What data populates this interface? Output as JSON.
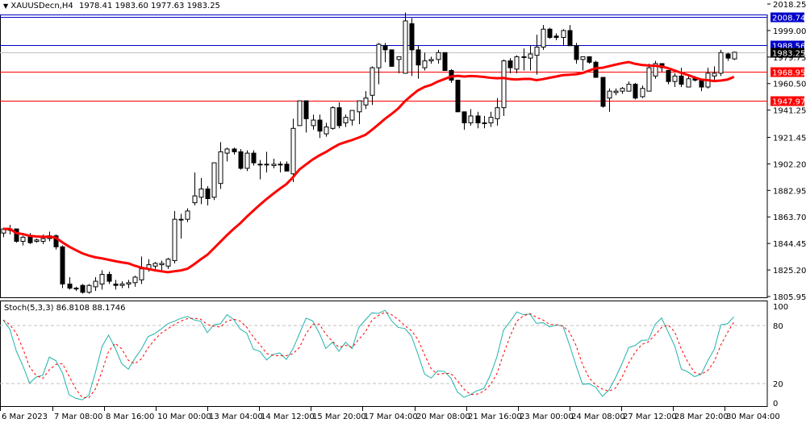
{
  "header": {
    "symbol_label": "XAUUSDecn,H4",
    "ohlc": "1978.41 1983.60 1977.63 1983.25",
    "collapse_icon": "triangle-down-icon"
  },
  "price_axis": {
    "ticks": [
      "2018.25",
      "1999.00",
      "1979.75",
      "1960.50",
      "1941.25",
      "1921.45",
      "1902.20",
      "1882.95",
      "1863.70",
      "1844.45",
      "1825.20",
      "1805.95"
    ],
    "tick_values": [
      2018.25,
      1999.0,
      1979.75,
      1960.5,
      1941.25,
      1921.45,
      1902.2,
      1882.95,
      1863.7,
      1844.45,
      1825.2,
      1805.95
    ]
  },
  "levels": [
    {
      "name": "resistance-2",
      "value": 2008.74,
      "label": "2008.74",
      "color": "#0000c8"
    },
    {
      "name": "resistance-1",
      "value": 1988.56,
      "label": "1988.56",
      "color": "#0000c8"
    },
    {
      "name": "current-price",
      "value": 1983.25,
      "label": "1983.25",
      "color": "#000000",
      "line_color": "#c0c0c0"
    },
    {
      "name": "support-1",
      "value": 1968.95,
      "label": "1968.95",
      "color": "#ff0000"
    },
    {
      "name": "support-2",
      "value": 1947.97,
      "label": "1947.97",
      "color": "#ff0000"
    }
  ],
  "stochastic": {
    "label": "Stoch(5,3,3) 86.8108 88.1746",
    "ticks": [
      "100",
      "80",
      "20",
      "0"
    ],
    "main_color": "#20b2aa",
    "signal_color": "#ff0000"
  },
  "time_axis": {
    "ticks": [
      "6 Mar 2023",
      "7 Mar 08:00",
      "8 Mar 16:00",
      "10 Mar 00:00",
      "13 Mar 04:00",
      "14 Mar 12:00",
      "15 Mar 20:00",
      "17 Mar 04:00",
      "20 Mar 08:00",
      "21 Mar 16:00",
      "23 Mar 00:00",
      "24 Mar 08:00",
      "27 Mar 12:00",
      "28 Mar 20:00",
      "30 Mar 04:00"
    ]
  },
  "chart_data": {
    "type": "candlestick",
    "title": "XAUUSDecn,H4",
    "ma_color": "#ff0000",
    "candles": [
      [
        1852,
        1856,
        1849,
        1855
      ],
      [
        1854,
        1858,
        1851,
        1855
      ],
      [
        1855,
        1854,
        1845,
        1846
      ],
      [
        1846,
        1850,
        1843,
        1849
      ],
      [
        1850,
        1852,
        1844,
        1845
      ],
      [
        1846,
        1848,
        1845,
        1847
      ],
      [
        1846,
        1851,
        1844,
        1848
      ],
      [
        1848,
        1853,
        1846,
        1850
      ],
      [
        1850,
        1851,
        1840,
        1842
      ],
      [
        1842,
        1843,
        1812,
        1815
      ],
      [
        1815,
        1820,
        1811,
        1812
      ],
      [
        1812,
        1813,
        1810,
        1812
      ],
      [
        1814,
        1815,
        1808,
        1809
      ],
      [
        1809,
        1815,
        1808,
        1814
      ],
      [
        1813,
        1820,
        1810,
        1817
      ],
      [
        1815,
        1825,
        1811,
        1822
      ],
      [
        1822,
        1824,
        1815,
        1817
      ],
      [
        1815,
        1818,
        1811,
        1814
      ],
      [
        1814,
        1817,
        1812,
        1815
      ],
      [
        1815,
        1818,
        1812,
        1816
      ],
      [
        1816,
        1821,
        1813,
        1820
      ],
      [
        1818,
        1835,
        1815,
        1826
      ],
      [
        1826,
        1833,
        1824,
        1829
      ],
      [
        1828,
        1831,
        1826,
        1830
      ],
      [
        1829,
        1832,
        1825,
        1830
      ],
      [
        1828,
        1834,
        1826,
        1833
      ],
      [
        1832,
        1868,
        1830,
        1862
      ],
      [
        1862,
        1866,
        1848,
        1862
      ],
      [
        1862,
        1870,
        1860,
        1868
      ],
      [
        1874,
        1896,
        1872,
        1879
      ],
      [
        1878,
        1892,
        1873,
        1884
      ],
      [
        1884,
        1886,
        1872,
        1877
      ],
      [
        1878,
        1895,
        1876,
        1903
      ],
      [
        1888,
        1918,
        1884,
        1911
      ],
      [
        1910,
        1914,
        1904,
        1913
      ],
      [
        1913,
        1914,
        1909,
        1911
      ],
      [
        1911,
        1913,
        1898,
        1899
      ],
      [
        1899,
        1912,
        1897,
        1910
      ],
      [
        1910,
        1912,
        1901,
        1903
      ],
      [
        1902,
        1905,
        1891,
        1902
      ],
      [
        1902,
        1911,
        1896,
        1902
      ],
      [
        1901,
        1906,
        1899,
        1902
      ],
      [
        1902,
        1904,
        1896,
        1902
      ],
      [
        1902,
        1904,
        1897,
        1897
      ],
      [
        1895,
        1935,
        1889,
        1928
      ],
      [
        1930,
        1945,
        1930,
        1948
      ],
      [
        1948,
        1940,
        1925,
        1935
      ],
      [
        1930,
        1938,
        1927,
        1934
      ],
      [
        1934,
        1938,
        1921,
        1926
      ],
      [
        1924,
        1932,
        1922,
        1929
      ],
      [
        1928,
        1944,
        1927,
        1943
      ],
      [
        1943,
        1947,
        1928,
        1930
      ],
      [
        1932,
        1938,
        1929,
        1936
      ],
      [
        1934,
        1941,
        1930,
        1941
      ],
      [
        1940,
        1944,
        1931,
        1948
      ],
      [
        1945,
        1955,
        1942,
        1950
      ],
      [
        1952,
        1973,
        1945,
        1972
      ],
      [
        1972,
        1990,
        1960,
        1989
      ],
      [
        1988,
        1990,
        1976,
        1985
      ],
      [
        1985,
        1983,
        1981,
        1973
      ],
      [
        1978,
        1974,
        1968,
        1980
      ],
      [
        1968,
        2012,
        1968,
        2006
      ],
      [
        2004,
        2008,
        1966,
        1985
      ],
      [
        1985,
        1988,
        1964,
        1974
      ],
      [
        1972,
        1983,
        1970,
        1977
      ],
      [
        1977,
        1980,
        1975,
        1978
      ],
      [
        1978,
        1985,
        1975,
        1983
      ],
      [
        1983,
        1983,
        1970,
        1970
      ],
      [
        1970,
        1971,
        1961,
        1963
      ],
      [
        1963,
        1960,
        1940,
        1940
      ],
      [
        1940,
        1940,
        1927,
        1932
      ],
      [
        1932,
        1942,
        1930,
        1937
      ],
      [
        1937,
        1940,
        1928,
        1932
      ],
      [
        1932,
        1937,
        1928,
        1932
      ],
      [
        1932,
        1940,
        1929,
        1936
      ],
      [
        1935,
        1950,
        1930,
        1943
      ],
      [
        1943,
        1978,
        1937,
        1977
      ],
      [
        1977,
        1979,
        1968,
        1972
      ],
      [
        1971,
        1981,
        1968,
        1980
      ],
      [
        1980,
        1986,
        1970,
        1980
      ],
      [
        1979,
        1988,
        1970,
        1982
      ],
      [
        1981,
        1996,
        1967,
        1987
      ],
      [
        1987,
        2003,
        1985,
        2000
      ],
      [
        2000,
        2001,
        1993,
        1994
      ],
      [
        1995,
        1997,
        1992,
        1994
      ],
      [
        1994,
        2000,
        1988,
        1999
      ],
      [
        1999,
        2003,
        1988,
        1988
      ],
      [
        1988,
        1990,
        1975,
        1978
      ],
      [
        1978,
        1980,
        1970,
        1980
      ],
      [
        1980,
        1979,
        1975,
        1976
      ],
      [
        1976,
        1977,
        1965,
        1965
      ],
      [
        1965,
        1963,
        1943,
        1944
      ],
      [
        1950,
        1957,
        1940,
        1955
      ],
      [
        1954,
        1957,
        1952,
        1955
      ],
      [
        1955,
        1958,
        1953,
        1957
      ],
      [
        1955,
        1962,
        1955,
        1960
      ],
      [
        1960,
        1961,
        1949,
        1950
      ],
      [
        1951,
        1959,
        1950,
        1957
      ],
      [
        1955,
        1975,
        1955,
        1972
      ],
      [
        1966,
        1977,
        1964,
        1975
      ],
      [
        1975,
        1975,
        1969,
        1972
      ],
      [
        1970,
        1970,
        1960,
        1962
      ],
      [
        1962,
        1968,
        1958,
        1966
      ],
      [
        1966,
        1972,
        1958,
        1960
      ],
      [
        1958,
        1966,
        1960,
        1964
      ],
      [
        1965,
        1966,
        1962,
        1963
      ],
      [
        1963,
        1963,
        1955,
        1958
      ],
      [
        1958,
        1972,
        1957,
        1968
      ],
      [
        1966,
        1973,
        1962,
        1968
      ],
      [
        1968,
        1985,
        1966,
        1983
      ],
      [
        1982,
        1983,
        1977,
        1979
      ],
      [
        1978.41,
        1983.6,
        1977.63,
        1983.25
      ]
    ]
  }
}
